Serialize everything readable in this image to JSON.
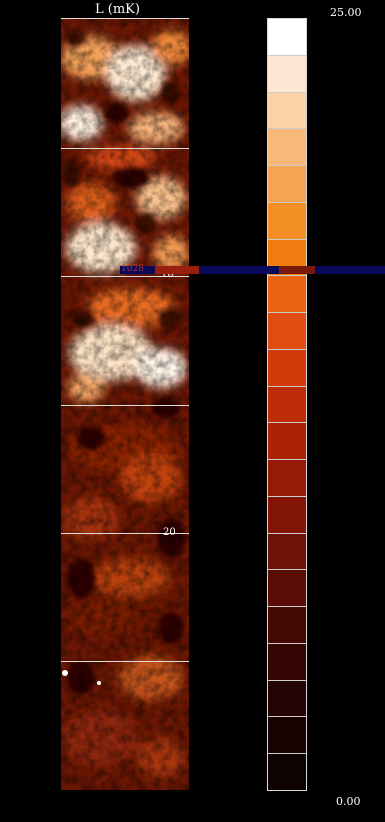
{
  "window": {
    "title": "L (mK)"
  },
  "strip": {
    "depth_labels": [
      "10",
      "20"
    ]
  },
  "colorbar": {
    "max_label": "25.00",
    "min_label": "0.00",
    "swatch_colors": [
      "#ffffff",
      "#fde7d2",
      "#fbd2a8",
      "#f8b877",
      "#f6a451",
      "#f38f24",
      "#f17c10",
      "#ea6214",
      "#df4d10",
      "#d23a0c",
      "#c02b08",
      "#ad2207",
      "#961a06",
      "#821506",
      "#6e1106",
      "#5a0d05",
      "#460a04",
      "#340704",
      "#240503",
      "#180302",
      "#0e0202"
    ]
  },
  "cursor": {
    "readout": "1028"
  },
  "colors": {
    "background": "#000000",
    "cursor_bar": "#0a0a5a",
    "gridline": "#dddddd"
  }
}
